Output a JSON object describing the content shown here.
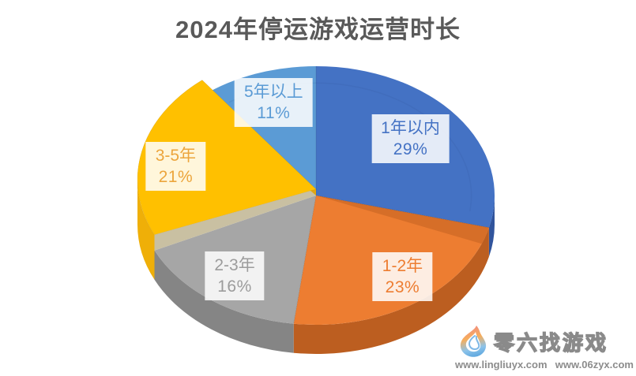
{
  "chart_data": {
    "type": "pie",
    "style": "3d",
    "title": "2024年停运游戏运营时长",
    "title_color": "#595959",
    "start_angle_deg": 0,
    "direction": "clockwise",
    "legend": "none",
    "background": "#FFFFFF",
    "data_label_box_bg": "rgba(255,255,255,0.86)",
    "categories": [
      "1年以内",
      "1-2年",
      "2-3年",
      "3-5年",
      "5年以上"
    ],
    "values": [
      29,
      23,
      16,
      21,
      11
    ],
    "slices": [
      {
        "label": "1年以内",
        "value": 29,
        "pct_label": "29%",
        "color": "#4472C4",
        "side_color": "#31549C",
        "label_text_color": "#4472C4",
        "raised": false
      },
      {
        "label": "1-2年",
        "value": 23,
        "pct_label": "23%",
        "color": "#ED7D31",
        "side_color": "#BC5E20",
        "label_text_color": "#ED7D31",
        "raised": false,
        "bevel_band_color": "#D66E28"
      },
      {
        "label": "2-3年",
        "value": 16,
        "pct_label": "16%",
        "color": "#A6A6A6",
        "side_color": "#858585",
        "label_text_color": "#9C9C9C",
        "raised": false
      },
      {
        "label": "3-5年",
        "value": 21,
        "pct_label": "21%",
        "color": "#FFC000",
        "side_color": "#EFAF08",
        "label_text_color": "#ECA53C",
        "raised": true,
        "wall_colors": {
          "start_edge": "#C9C0A2",
          "end_edge": "#E0A513",
          "back_arc": "#E2A40C"
        }
      },
      {
        "label": "5年以上",
        "value": 11,
        "pct_label": "11%",
        "color": "#5B9BD5",
        "side_color": "#41729F",
        "label_text_color": "#5B9BD5",
        "raised": false
      }
    ]
  },
  "watermark": {
    "brand": "零六找游戏",
    "url_left": "www.lingliuyx.com",
    "url_right": "www.06zyx.com",
    "text_color": "#8C8C8C",
    "flame_icon_colors": {
      "top": "#F28B82",
      "middle": "#F6AE5C",
      "bottom": "#5FA8DF"
    }
  }
}
